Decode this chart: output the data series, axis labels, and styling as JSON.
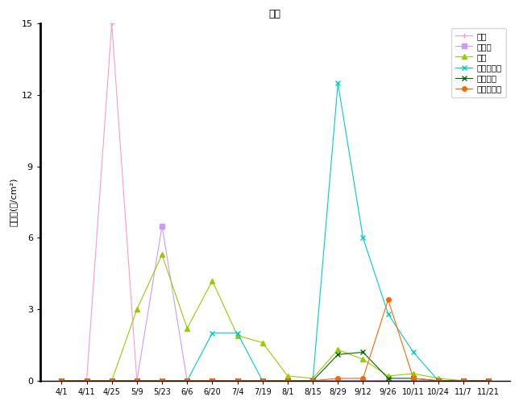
{
  "title": "週計",
  "ylabel": "花粉数(個/cm²)",
  "x_labels": [
    "4/1",
    "4/11",
    "4/25",
    "5/9",
    "5/23",
    "6/6",
    "6/20",
    "7/4",
    "7/19",
    "8/1",
    "8/15",
    "8/29",
    "9/12",
    "9/26",
    "10/11",
    "10/24",
    "11/7",
    "11/21"
  ],
  "ylim": [
    0,
    15
  ],
  "yticks": [
    0,
    3,
    6,
    9,
    12,
    15
  ],
  "series": [
    {
      "name": "スギ",
      "color": "#FF99CC",
      "marker": "+",
      "markersize": 5,
      "values": [
        0,
        0,
        15,
        0,
        0,
        0,
        0,
        0,
        0,
        0,
        0,
        0,
        0,
        0,
        0,
        0,
        0,
        0
      ]
    },
    {
      "name": "ヒノキ",
      "color": "#CC99FF",
      "marker": "s",
      "markersize": 4,
      "values": [
        0,
        0,
        0,
        0,
        6.5,
        0,
        0,
        0,
        0,
        0,
        0,
        0,
        0,
        0,
        0,
        0,
        0,
        0
      ]
    },
    {
      "name": "イ科",
      "color": "#99CC00",
      "marker": "^",
      "markersize": 5,
      "values": [
        0,
        0,
        0,
        3.0,
        5.3,
        2.2,
        4.2,
        1.9,
        1.6,
        0.2,
        0.1,
        1.3,
        0.9,
        0.2,
        0.3,
        0.1,
        0,
        0
      ]
    },
    {
      "name": "ブタクサ属",
      "color": "#00CCCC",
      "marker": "x",
      "markersize": 5,
      "values": [
        0,
        0,
        0,
        0,
        0,
        0,
        2.0,
        2.0,
        0,
        0,
        0,
        12.5,
        6.0,
        2.8,
        1.2,
        0,
        0,
        0
      ]
    },
    {
      "name": "ヨモギ属",
      "color": "#006600",
      "marker": "x",
      "markersize": 5,
      "values": [
        0,
        0,
        0,
        0,
        0,
        0,
        0,
        0,
        0,
        0,
        0,
        1.1,
        1.2,
        0.1,
        0.1,
        0,
        0,
        0
      ]
    },
    {
      "name": "カナムグラ",
      "color": "#FF6600",
      "marker": "o",
      "markersize": 4,
      "values": [
        0,
        0,
        0,
        0,
        0,
        0,
        0,
        0,
        0,
        0,
        0,
        0.1,
        0.1,
        3.4,
        0.1,
        0,
        0,
        0
      ]
    }
  ]
}
